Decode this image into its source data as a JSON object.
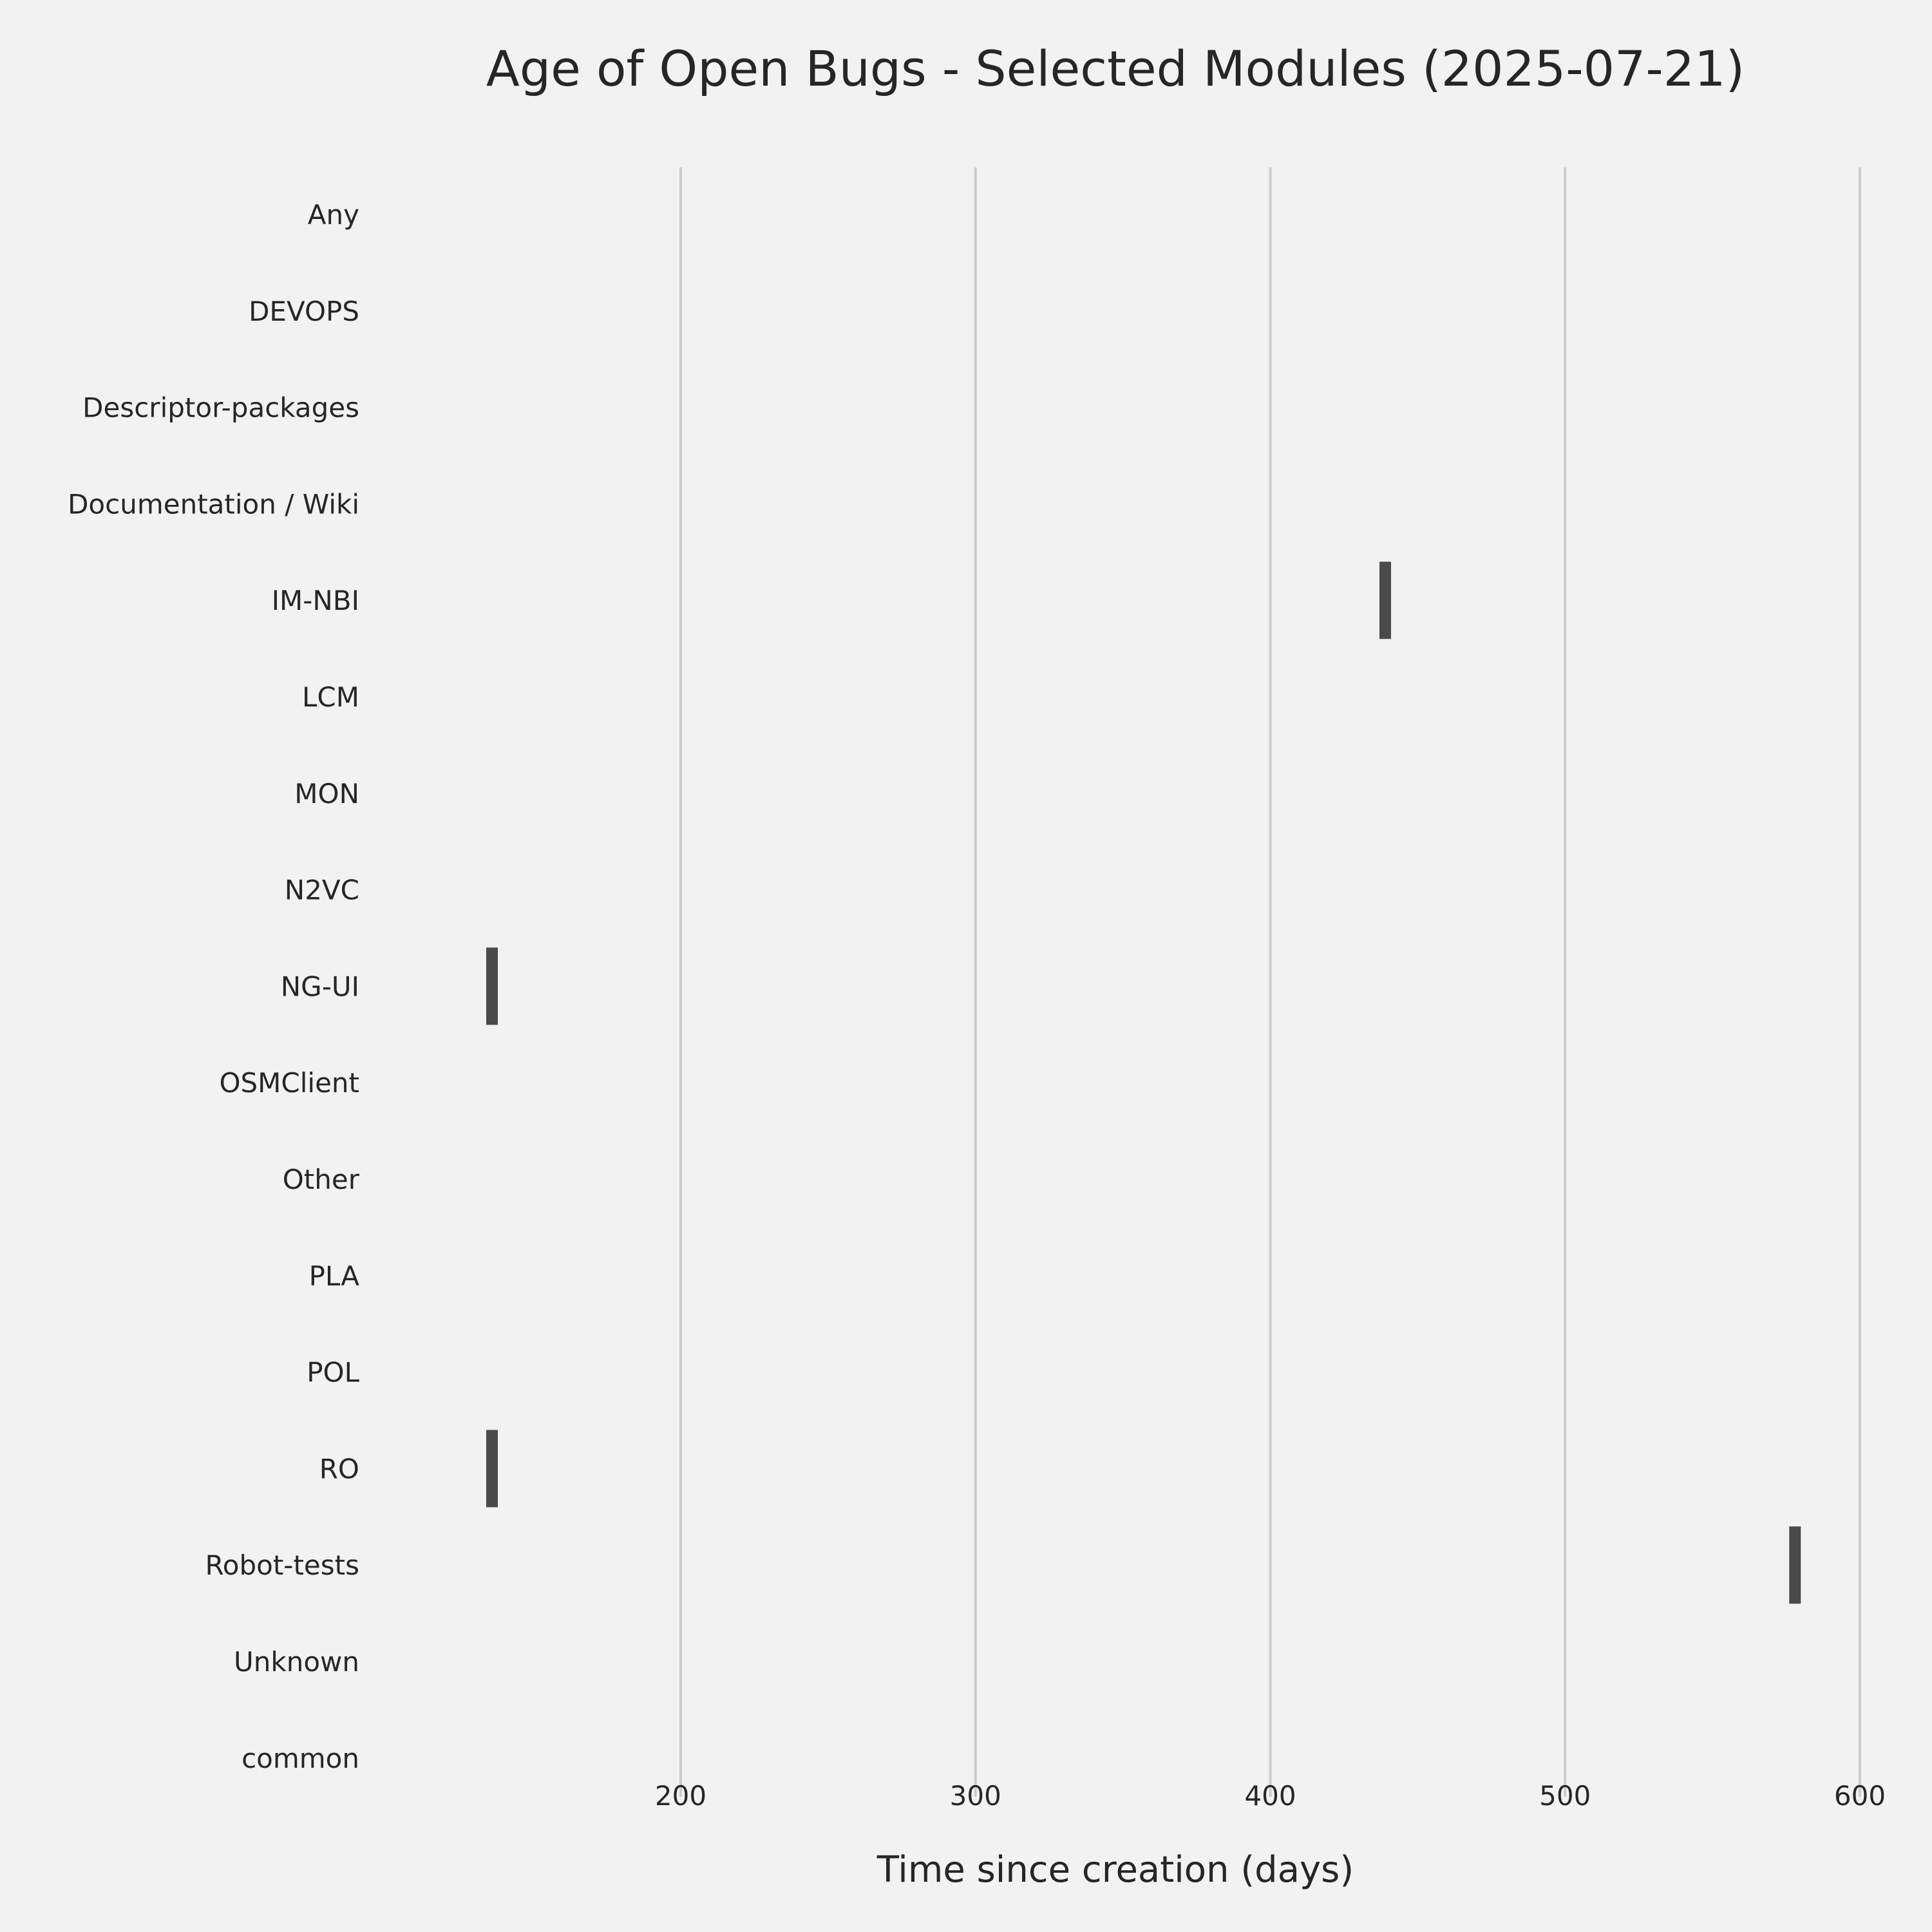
{
  "chart_data": {
    "type": "bar",
    "orientation": "horizontal",
    "title": "Age of Open Bugs - Selected Modules (2025-07-21)",
    "xlabel": "Time since creation (days)",
    "ylabel": "",
    "xlim": [
      110,
      600
    ],
    "xticks": [
      200,
      300,
      400,
      500,
      600
    ],
    "grid": "vertical",
    "categories": [
      "Any",
      "DEVOPS",
      "Descriptor-packages",
      "Documentation / Wiki",
      "IM-NBI",
      "LCM",
      "MON",
      "N2VC",
      "NG-UI",
      "OSMClient",
      "Other",
      "PLA",
      "POL",
      "RO",
      "Robot-tests",
      "Unknown",
      "common"
    ],
    "points": [
      {
        "category": "IM-NBI",
        "value": 439
      },
      {
        "category": "NG-UI",
        "value": 136
      },
      {
        "category": "RO",
        "value": 136
      },
      {
        "category": "Robot-tests",
        "value": 578
      }
    ],
    "colors": {
      "background": "#f2f2f2",
      "grid": "#cbcbcb",
      "mark": "#4a4a4a",
      "text": "#262626"
    }
  }
}
